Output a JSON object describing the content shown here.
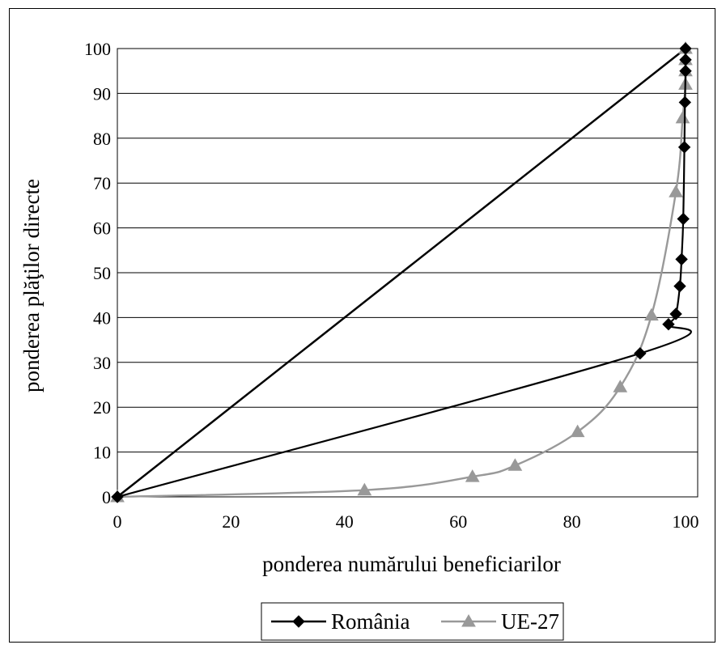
{
  "chart_data": {
    "type": "line",
    "xlabel": "ponderea numărului beneficiarilor",
    "ylabel": "ponderea plăţilor directe",
    "xlim": [
      0,
      100
    ],
    "ylim": [
      0,
      100
    ],
    "x_ticks": [
      0,
      20,
      40,
      60,
      80,
      100
    ],
    "y_ticks": [
      0,
      10,
      20,
      30,
      40,
      50,
      60,
      70,
      80,
      90,
      100
    ],
    "grid": "horizontal",
    "legend": "bottom-center",
    "reference_line": [
      [
        0,
        0
      ],
      [
        100,
        100
      ]
    ],
    "series": [
      {
        "name": "România",
        "color": "#000000",
        "marker": "diamond",
        "points": [
          [
            0,
            0
          ],
          [
            92,
            32
          ],
          [
            97,
            38.5
          ],
          [
            98.3,
            40.8
          ],
          [
            99,
            47
          ],
          [
            99.3,
            53
          ],
          [
            99.6,
            62
          ],
          [
            99.8,
            78
          ],
          [
            99.9,
            88
          ],
          [
            100,
            95
          ],
          [
            100,
            97.5
          ],
          [
            100,
            100
          ]
        ]
      },
      {
        "name": "UE-27",
        "color": "#999999",
        "marker": "triangle",
        "points": [
          [
            0,
            0
          ],
          [
            43.5,
            1.5
          ],
          [
            62.5,
            4.5
          ],
          [
            70,
            7
          ],
          [
            81,
            14.5
          ],
          [
            88.5,
            24.5
          ],
          [
            94,
            40.5
          ],
          [
            98.3,
            68
          ],
          [
            99.5,
            84.5
          ],
          [
            100,
            92
          ],
          [
            100,
            95
          ],
          [
            100,
            97.5
          ],
          [
            100,
            100
          ]
        ]
      }
    ]
  }
}
